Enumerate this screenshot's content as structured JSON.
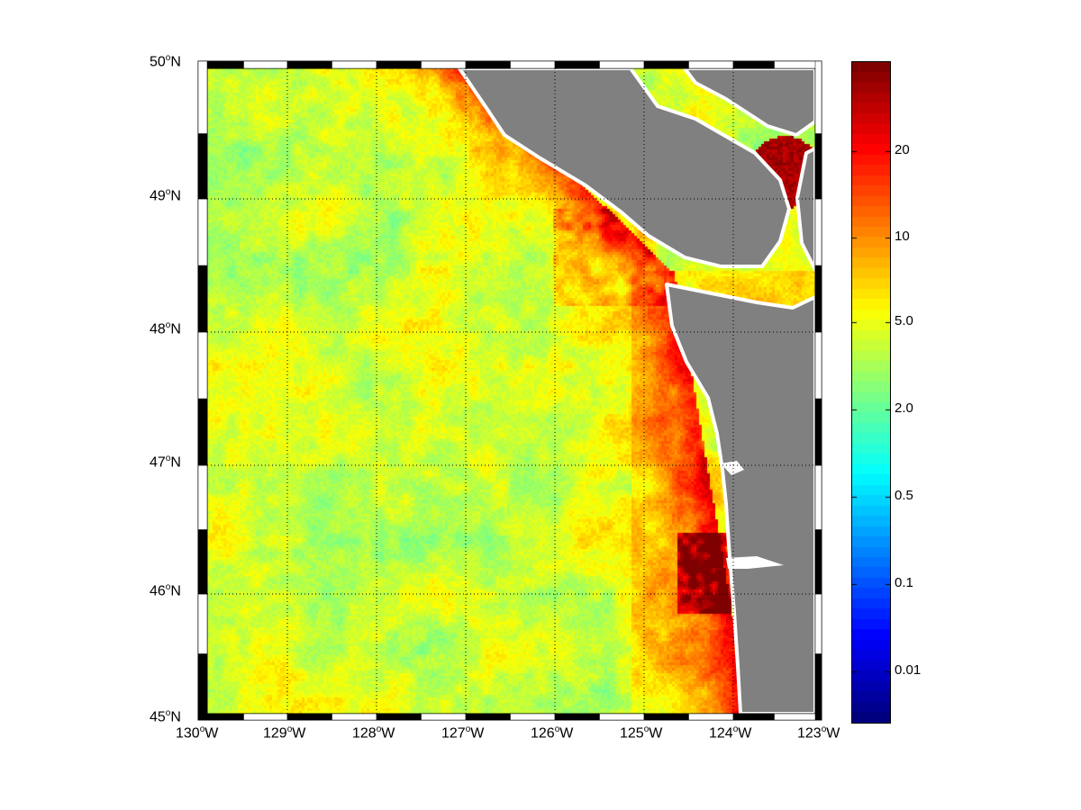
{
  "map": {
    "projection": "mercator",
    "lon_range": [
      -130,
      -123
    ],
    "lat_range": [
      45,
      50
    ],
    "grid": true,
    "land_color": "#808080",
    "coast_color": "#ffffff",
    "lon_labels": [
      {
        "deg": "130",
        "hem": "W"
      },
      {
        "deg": "129",
        "hem": "W"
      },
      {
        "deg": "128",
        "hem": "W"
      },
      {
        "deg": "127",
        "hem": "W"
      },
      {
        "deg": "126",
        "hem": "W"
      },
      {
        "deg": "125",
        "hem": "W"
      },
      {
        "deg": "124",
        "hem": "W"
      },
      {
        "deg": "123",
        "hem": "W"
      }
    ],
    "lat_labels": [
      {
        "deg": "50",
        "hem": "N"
      },
      {
        "deg": "49",
        "hem": "N"
      },
      {
        "deg": "48",
        "hem": "N"
      },
      {
        "deg": "47",
        "hem": "N"
      },
      {
        "deg": "46",
        "hem": "N"
      },
      {
        "deg": "45",
        "hem": "N"
      }
    ]
  },
  "colorbar": {
    "colormap": "jet",
    "ticks": [
      "20",
      "10",
      "5.0",
      "2.0",
      "0.5",
      "0.1",
      "0.01"
    ]
  }
}
